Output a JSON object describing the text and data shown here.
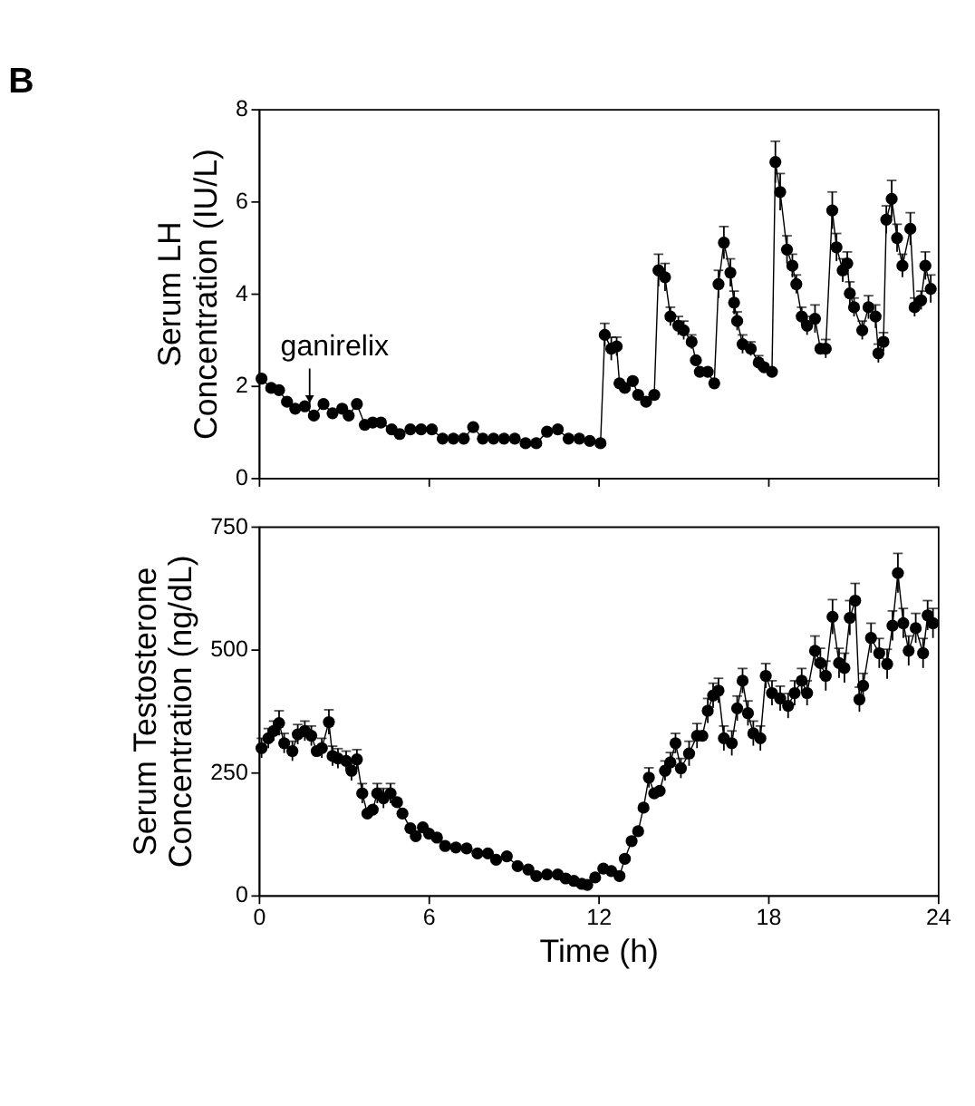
{
  "chart_data": [
    {
      "type": "line",
      "title": "B",
      "ylabel": "Serum LH Concentration (IU/L)",
      "xlim": [
        0,
        24
      ],
      "xticks": [
        0,
        6,
        12,
        18,
        24
      ],
      "ylim": [
        0,
        8
      ],
      "yticks": [
        0,
        2,
        4,
        6,
        8
      ],
      "tick_labels": "y",
      "grid": false,
      "marker": "circle",
      "line_style": "solid",
      "annotations": [
        {
          "text": "ganirelix",
          "x": 1.8,
          "y": 1.6
        }
      ],
      "series": [
        {
          "color": "#000000",
          "x": [
            0.1,
            0.44,
            0.72,
            1.0,
            1.29,
            1.63,
            1.95,
            2.29,
            2.61,
            2.95,
            3.18,
            3.47,
            3.75,
            4.03,
            4.32,
            4.7,
            4.98,
            5.36,
            5.74,
            6.12,
            6.5,
            6.88,
            7.25,
            7.58,
            7.92,
            8.3,
            8.67,
            9.05,
            9.43,
            9.81,
            10.19,
            10.57,
            10.95,
            11.33,
            11.7,
            12.08,
            12.23,
            12.46,
            12.65,
            12.75,
            12.94,
            13.22,
            13.41,
            13.69,
            13.98,
            14.13,
            14.36,
            14.55,
            14.83,
            15.02,
            15.3,
            15.45,
            15.59,
            15.87,
            16.1,
            16.25,
            16.44,
            16.67,
            16.8,
            16.91,
            17.1,
            17.39,
            17.67,
            17.86,
            18.14,
            18.26,
            18.43,
            18.67,
            18.86,
            19.0,
            19.19,
            19.38,
            19.66,
            19.85,
            20.04,
            20.27,
            20.42,
            20.64,
            20.8,
            20.89,
            21.04,
            21.33,
            21.55,
            21.8,
            21.9,
            22.08,
            22.18,
            22.37,
            22.56,
            22.75,
            23.03,
            23.18,
            23.41,
            23.56,
            23.75
          ],
          "values": [
            2.15,
            1.95,
            1.9,
            1.65,
            1.5,
            1.55,
            1.35,
            1.6,
            1.4,
            1.5,
            1.35,
            1.6,
            1.15,
            1.2,
            1.2,
            1.05,
            0.95,
            1.05,
            1.05,
            1.05,
            0.85,
            0.85,
            0.85,
            1.1,
            0.85,
            0.85,
            0.85,
            0.85,
            0.75,
            0.75,
            1.0,
            1.05,
            0.85,
            0.85,
            0.8,
            0.75,
            3.1,
            2.8,
            2.85,
            2.05,
            1.95,
            2.1,
            1.8,
            1.65,
            1.8,
            4.5,
            4.35,
            3.5,
            3.3,
            3.2,
            2.95,
            2.55,
            2.3,
            2.3,
            2.05,
            4.2,
            5.1,
            4.45,
            3.8,
            3.4,
            2.9,
            2.8,
            2.5,
            2.4,
            2.3,
            6.85,
            6.2,
            4.95,
            4.6,
            4.2,
            3.5,
            3.3,
            3.45,
            2.8,
            2.8,
            5.8,
            5.0,
            4.5,
            4.65,
            4.0,
            3.7,
            3.2,
            3.7,
            3.5,
            2.7,
            2.95,
            5.6,
            6.05,
            5.2,
            4.6,
            5.4,
            3.7,
            3.85,
            4.6,
            4.1
          ],
          "errors": [
            null,
            null,
            null,
            null,
            null,
            null,
            null,
            null,
            null,
            null,
            null,
            null,
            null,
            null,
            null,
            null,
            null,
            null,
            null,
            null,
            null,
            null,
            null,
            null,
            null,
            null,
            null,
            null,
            null,
            null,
            null,
            null,
            null,
            null,
            null,
            null,
            0.25,
            0.25,
            0.2,
            null,
            null,
            null,
            null,
            null,
            null,
            0.35,
            0.3,
            0.2,
            0.2,
            0.2,
            0.15,
            null,
            null,
            null,
            null,
            0.3,
            0.35,
            0.3,
            0.25,
            0.2,
            0.2,
            0.15,
            0.15,
            null,
            null,
            0.45,
            0.4,
            0.3,
            0.25,
            0.2,
            0.2,
            0.2,
            0.3,
            null,
            0.2,
            0.4,
            0.3,
            0.25,
            0.25,
            0.25,
            0.2,
            0.2,
            0.25,
            0.25,
            0.2,
            0.2,
            0.3,
            0.4,
            0.3,
            0.25,
            0.35,
            0.2,
            0.2,
            0.3,
            0.3
          ]
        }
      ]
    },
    {
      "type": "line",
      "xlabel": "Time (h)",
      "ylabel": "Serum Testosterone Concentration (ng/dL)",
      "xlim": [
        0,
        24
      ],
      "xticks": [
        0,
        6,
        12,
        18,
        24
      ],
      "ylim": [
        0,
        750
      ],
      "yticks": [
        0,
        250,
        500,
        750
      ],
      "grid": false,
      "marker": "circle",
      "line_style": "solid",
      "series": [
        {
          "color": "#000000",
          "x": [
            0.1,
            0.34,
            0.53,
            0.72,
            0.9,
            1.19,
            1.38,
            1.63,
            1.86,
            2.05,
            2.23,
            2.48,
            2.61,
            2.8,
            3.09,
            3.28,
            3.47,
            3.66,
            3.84,
            4.03,
            4.19,
            4.41,
            4.66,
            4.89,
            5.08,
            5.36,
            5.55,
            5.8,
            6.02,
            6.3,
            6.59,
            6.97,
            7.35,
            7.73,
            8.1,
            8.39,
            8.77,
            9.15,
            9.53,
            9.81,
            10.19,
            10.57,
            10.85,
            11.14,
            11.42,
            11.61,
            11.89,
            12.18,
            12.46,
            12.75,
            12.94,
            13.18,
            13.41,
            13.6,
            13.79,
            13.98,
            14.17,
            14.36,
            14.55,
            14.73,
            14.92,
            15.21,
            15.49,
            15.68,
            15.87,
            16.06,
            16.25,
            16.44,
            16.72,
            16.91,
            17.1,
            17.29,
            17.48,
            17.73,
            17.92,
            18.14,
            18.43,
            18.71,
            18.94,
            19.19,
            19.38,
            19.66,
            19.85,
            20.04,
            20.28,
            20.51,
            20.7,
            20.89,
            21.08,
            21.23,
            21.36,
            21.64,
            21.93,
            22.21,
            22.4,
            22.59,
            22.78,
            22.97,
            23.22,
            23.48,
            23.64,
            23.83
          ],
          "values": [
            299,
            319,
            334,
            350,
            309,
            293,
            327,
            334,
            324,
            293,
            299,
            352,
            283,
            278,
            273,
            253,
            276,
            207,
            166,
            174,
            207,
            197,
            207,
            189,
            166,
            136,
            120,
            138,
            125,
            117,
            100,
            97,
            95,
            85,
            85,
            72,
            79,
            59,
            52,
            39,
            42,
            42,
            34,
            29,
            23,
            21,
            36,
            54,
            49,
            39,
            74,
            110,
            130,
            178,
            239,
            207,
            212,
            253,
            270,
            309,
            258,
            288,
            324,
            324,
            375,
            406,
            416,
            319,
            309,
            380,
            436,
            370,
            329,
            319,
            446,
            411,
            400,
            385,
            411,
            436,
            411,
            497,
            472,
            446,
            566,
            472,
            462,
            564,
            599,
            398,
            426,
            523,
            492,
            470,
            548,
            655,
            553,
            497,
            543,
            492,
            569,
            553
          ],
          "errors": [
            20,
            20,
            20,
            25,
            20,
            20,
            20,
            20,
            20,
            null,
            20,
            25,
            20,
            20,
            20,
            20,
            20,
            20,
            null,
            null,
            20,
            20,
            20,
            null,
            null,
            null,
            null,
            null,
            null,
            null,
            null,
            null,
            null,
            null,
            null,
            null,
            null,
            null,
            null,
            null,
            null,
            null,
            null,
            null,
            null,
            null,
            null,
            null,
            null,
            null,
            null,
            null,
            null,
            null,
            20,
            null,
            null,
            20,
            20,
            20,
            20,
            25,
            25,
            null,
            25,
            25,
            25,
            25,
            25,
            25,
            25,
            25,
            25,
            25,
            25,
            25,
            25,
            25,
            25,
            25,
            25,
            30,
            30,
            30,
            35,
            30,
            30,
            35,
            35,
            25,
            25,
            30,
            30,
            30,
            30,
            40,
            30,
            30,
            30,
            30,
            30,
            30
          ]
        }
      ]
    }
  ]
}
